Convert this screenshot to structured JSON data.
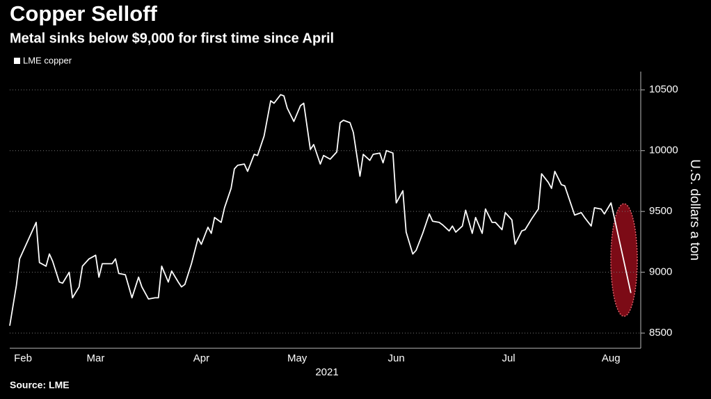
{
  "chart_data": {
    "type": "line",
    "title": "Copper Selloff",
    "subtitle": "Metal sinks below $9,000 for first time since April",
    "source": "Source: LME",
    "xlabel": "2021",
    "ylabel": "U.S. dollars a ton",
    "legend": "top-left",
    "grid": true,
    "xlim": [
      0,
      191
    ],
    "ylim": [
      8375,
      10650
    ],
    "yticks": [
      8500,
      9000,
      9500,
      10000,
      10500
    ],
    "xticks": [
      {
        "value": 4,
        "label": "Feb"
      },
      {
        "value": 26,
        "label": "Mar"
      },
      {
        "value": 58,
        "label": "Apr"
      },
      {
        "value": 87,
        "label": "May"
      },
      {
        "value": 117,
        "label": "Jun"
      },
      {
        "value": 151,
        "label": "Jul"
      },
      {
        "value": 182,
        "label": "Aug"
      }
    ],
    "x": [
      0,
      2,
      3,
      8,
      9,
      11,
      12,
      13,
      15,
      16,
      18,
      19,
      21,
      22,
      24,
      26,
      27,
      28,
      31,
      32,
      33,
      35,
      37,
      39,
      40,
      42,
      44,
      45,
      46,
      48,
      49,
      51,
      52,
      53,
      55,
      57,
      58,
      60,
      61,
      62,
      64,
      65,
      67,
      68,
      69,
      71,
      72,
      74,
      75,
      77,
      79,
      80,
      82,
      83,
      84,
      86,
      88,
      89,
      91,
      92,
      94,
      95,
      97,
      99,
      100,
      101,
      103,
      104,
      106,
      107,
      109,
      110,
      112,
      113,
      114,
      116,
      117,
      119,
      120,
      122,
      123,
      125,
      127,
      128,
      130,
      131,
      133,
      134,
      135,
      137,
      138,
      140,
      141,
      143,
      144,
      146,
      147,
      149,
      150,
      152,
      153,
      155,
      156,
      158,
      160,
      161,
      163,
      164,
      165,
      167,
      168,
      170,
      171,
      173,
      174,
      176,
      177,
      179,
      180,
      182,
      183,
      188
    ],
    "series": [
      {
        "name": "LME copper",
        "color": "#ffffff",
        "values": [
          8560,
          8890,
          9110,
          9410,
          9080,
          9050,
          9150,
          9090,
          8920,
          8910,
          9000,
          8790,
          8880,
          9050,
          9110,
          9140,
          8960,
          9070,
          9070,
          9110,
          8990,
          8980,
          8790,
          8960,
          8880,
          8780,
          8790,
          8790,
          9050,
          8920,
          9010,
          8920,
          8880,
          8900,
          9070,
          9280,
          9230,
          9370,
          9320,
          9450,
          9410,
          9530,
          9690,
          9850,
          9880,
          9890,
          9830,
          9970,
          9960,
          10120,
          10410,
          10390,
          10460,
          10450,
          10350,
          10240,
          10370,
          10390,
          10010,
          10050,
          9890,
          9960,
          9930,
          9990,
          10230,
          10250,
          10230,
          10150,
          9790,
          9970,
          9920,
          9970,
          9980,
          9900,
          10000,
          9980,
          9570,
          9670,
          9330,
          9150,
          9180,
          9320,
          9480,
          9420,
          9410,
          9390,
          9340,
          9380,
          9330,
          9380,
          9510,
          9320,
          9450,
          9320,
          9520,
          9410,
          9410,
          9350,
          9490,
          9430,
          9230,
          9340,
          9350,
          9440,
          9520,
          9810,
          9740,
          9690,
          9830,
          9720,
          9710,
          9550,
          9470,
          9490,
          9450,
          9380,
          9530,
          9520,
          9480,
          9570,
          9450,
          8830
        ]
      }
    ]
  }
}
